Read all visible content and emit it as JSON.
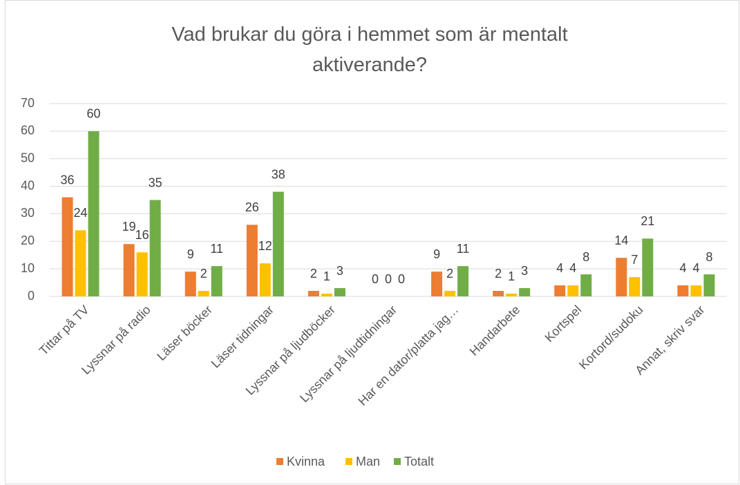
{
  "chart_data": {
    "type": "bar",
    "title": "Vad brukar du göra i hemmet som är mentalt aktiverande?",
    "categories": [
      "Tittar på TV",
      "Lyssnar på radio",
      "Läser böcker",
      "Läser tidningar",
      "Lyssnar på ljudböcker",
      "Lyssnar på ljudtidningar",
      "Har en dator/platta jag…",
      "Handarbete",
      "Kortspel",
      "Kortord/sudoku",
      "Annat, skriv svar"
    ],
    "series": [
      {
        "name": "Kvinna",
        "color": "#ED7D31",
        "values": [
          36,
          19,
          9,
          26,
          2,
          0,
          9,
          2,
          4,
          14,
          4
        ]
      },
      {
        "name": "Man",
        "color": "#FFC000",
        "values": [
          24,
          16,
          2,
          12,
          1,
          0,
          2,
          1,
          4,
          7,
          4
        ]
      },
      {
        "name": "Totalt",
        "color": "#70AD47",
        "values": [
          60,
          35,
          11,
          38,
          3,
          0,
          11,
          3,
          8,
          21,
          8
        ]
      }
    ],
    "ylim": [
      0,
      70
    ],
    "yticks": [
      0,
      10,
      20,
      30,
      40,
      50,
      60,
      70
    ],
    "grid": true,
    "legend": "bottom"
  }
}
